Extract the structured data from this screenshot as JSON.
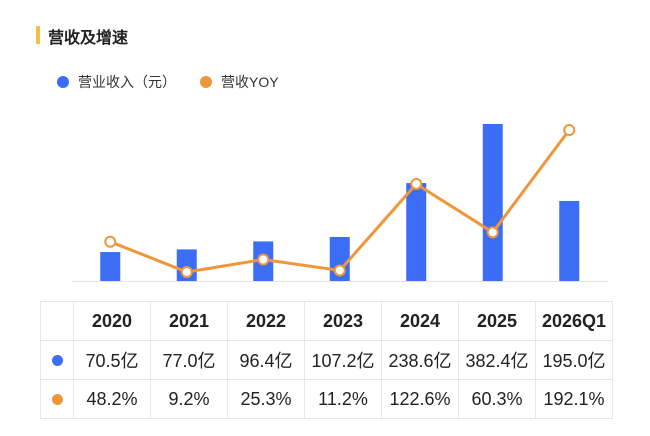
{
  "title": "营收及增速",
  "colors": {
    "revenue": "#3b6ef5",
    "yoy": "#f0963a",
    "accent": "#f5c042"
  },
  "legend": [
    {
      "name": "营业收入（元）",
      "color": "#3b6ef5"
    },
    {
      "name": "营收YOY",
      "color": "#f0963a"
    }
  ],
  "chart_data": {
    "type": "bar",
    "categories": [
      "2020",
      "2021",
      "2022",
      "2023",
      "2024",
      "2025",
      "2026Q1"
    ],
    "series": [
      {
        "name": "营业收入（元）",
        "type": "bar",
        "values": [
          70.5,
          77.0,
          96.4,
          107.2,
          238.6,
          382.4,
          195.0
        ]
      },
      {
        "name": "营收YOY",
        "type": "line",
        "values": [
          48.2,
          9.2,
          25.3,
          11.2,
          122.6,
          60.3,
          192.1
        ]
      }
    ],
    "grid": false,
    "legend_position": "top-left"
  },
  "table": {
    "headers": [
      "2020",
      "2021",
      "2022",
      "2023",
      "2024",
      "2025",
      "2026Q1"
    ],
    "revenue": [
      "70.5亿",
      "77.0亿",
      "96.4亿",
      "107.2亿",
      "238.6亿",
      "382.4亿",
      "195.0亿"
    ],
    "yoy": [
      "48.2%",
      "9.2%",
      "25.3%",
      "11.2%",
      "122.6%",
      "60.3%",
      "192.1%"
    ]
  }
}
